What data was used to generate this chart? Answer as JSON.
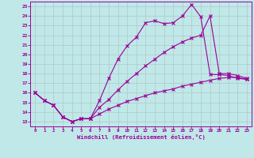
{
  "xlabel": "Windchill (Refroidissement éolien,°C)",
  "xlim": [
    -0.5,
    23.5
  ],
  "ylim": [
    12.5,
    25.5
  ],
  "xticks": [
    0,
    1,
    2,
    3,
    4,
    5,
    6,
    7,
    8,
    9,
    10,
    11,
    12,
    13,
    14,
    15,
    16,
    17,
    18,
    19,
    20,
    21,
    22,
    23
  ],
  "yticks": [
    13,
    14,
    15,
    16,
    17,
    18,
    19,
    20,
    21,
    22,
    23,
    24,
    25
  ],
  "background_color": "#c0e8e8",
  "line_color": "#990099",
  "grid_color": "#b0c8c8",
  "upper_x": [
    0,
    1,
    2,
    3,
    4,
    5,
    6,
    7,
    8,
    9,
    10,
    11,
    12,
    13,
    14,
    15,
    16,
    17,
    18,
    19,
    20,
    21,
    22,
    23
  ],
  "upper_y": [
    16.0,
    15.2,
    14.7,
    13.5,
    13.0,
    13.3,
    13.3,
    15.2,
    17.5,
    19.5,
    20.9,
    21.8,
    23.3,
    23.5,
    23.2,
    23.3,
    24.0,
    25.2,
    23.9,
    17.9,
    17.9,
    17.8,
    17.5,
    17.4
  ],
  "mid_x": [
    0,
    1,
    2,
    3,
    4,
    5,
    6,
    7,
    8,
    9,
    10,
    11,
    12,
    13,
    14,
    15,
    16,
    17,
    18,
    19,
    20,
    21,
    22,
    23
  ],
  "mid_y": [
    16.0,
    15.2,
    14.7,
    13.5,
    13.0,
    13.3,
    13.3,
    14.5,
    15.3,
    16.3,
    17.2,
    18.0,
    18.8,
    19.5,
    20.2,
    20.8,
    21.3,
    21.7,
    22.0,
    24.0,
    18.0,
    18.0,
    17.8,
    17.5
  ],
  "lower_x": [
    0,
    1,
    2,
    3,
    4,
    5,
    6,
    7,
    8,
    9,
    10,
    11,
    12,
    13,
    14,
    15,
    16,
    17,
    18,
    19,
    20,
    21,
    22,
    23
  ],
  "lower_y": [
    16.0,
    15.2,
    14.7,
    13.5,
    13.0,
    13.3,
    13.3,
    13.8,
    14.3,
    14.7,
    15.1,
    15.4,
    15.7,
    16.0,
    16.2,
    16.4,
    16.7,
    16.9,
    17.1,
    17.3,
    17.5,
    17.6,
    17.6,
    17.4
  ]
}
